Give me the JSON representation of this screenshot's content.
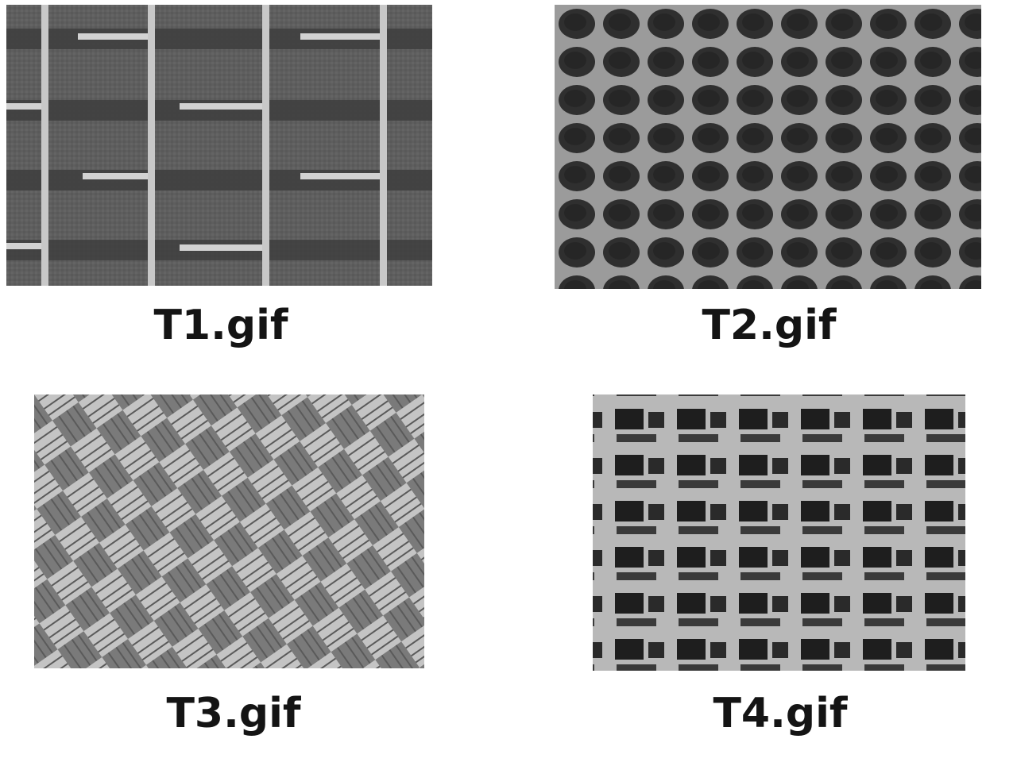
{
  "textures": [
    {
      "caption": "T1.gif"
    },
    {
      "caption": "T2.gif"
    },
    {
      "caption": "T3.gif"
    },
    {
      "caption": "T4.gif"
    }
  ]
}
